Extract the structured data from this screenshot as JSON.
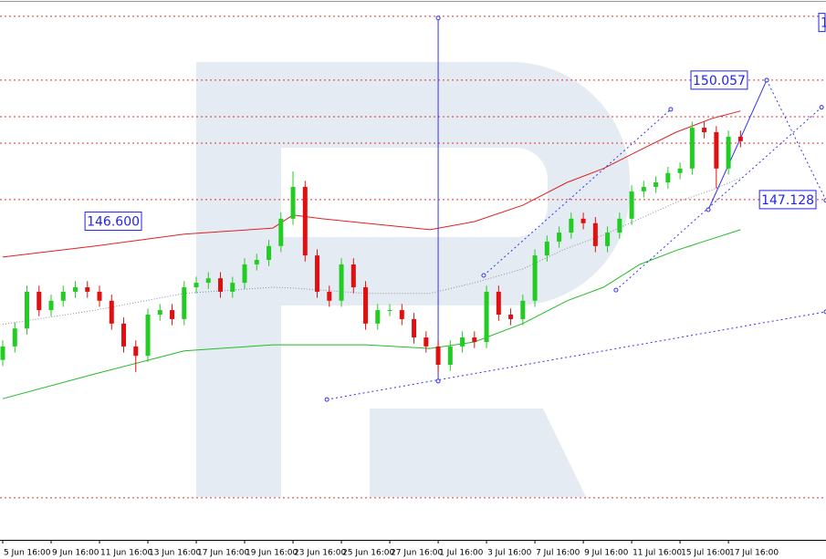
{
  "chart_data": {
    "type": "candlestick",
    "xlim": [
      -0.68,
      204.2
    ],
    "ylim": [
      138.79,
      152.02
    ],
    "xticks": [
      {
        "value": 0,
        "label": "5 Jun 16:00"
      },
      {
        "value": 12,
        "label": "9 Jun 16:00"
      },
      {
        "value": 24,
        "label": "11 Jun 16:00"
      },
      {
        "value": 36,
        "label": "13 Jun 16:00"
      },
      {
        "value": 48,
        "label": "17 Jun 16:00"
      },
      {
        "value": 60,
        "label": "19 Jun 16:00"
      },
      {
        "value": 72,
        "label": "23 Jun 16:00"
      },
      {
        "value": 84,
        "label": "25 Jun 16:00"
      },
      {
        "value": 96,
        "label": "27 Jun 16:00"
      },
      {
        "value": 108,
        "label": "1 Jul 16:00"
      },
      {
        "value": 120,
        "label": "3 Jul 16:00"
      },
      {
        "value": 132,
        "label": "7 Jul 16:00"
      },
      {
        "value": 144,
        "label": "9 Jul 16:00"
      },
      {
        "value": 156,
        "label": "11 Jul 16:00"
      },
      {
        "value": 168,
        "label": "15 Jul 16:00"
      },
      {
        "value": 180,
        "label": "17 Jul 16:00"
      }
    ],
    "x": [
      0,
      3,
      6,
      9,
      12,
      15,
      18,
      21,
      24,
      27,
      30,
      33,
      36,
      39,
      42,
      45,
      48,
      51,
      54,
      57,
      60,
      63,
      66,
      69,
      72,
      75,
      78,
      81,
      84,
      87,
      90,
      93,
      96,
      99,
      102,
      105,
      108,
      111,
      114,
      117,
      120,
      123,
      126,
      129,
      132,
      135,
      138,
      141,
      144,
      147,
      150,
      153,
      156,
      159,
      162,
      165,
      168,
      171,
      174,
      177,
      180,
      183
    ],
    "open": [
      143.2,
      143.53,
      143.97,
      144.87,
      144.42,
      144.65,
      144.87,
      144.98,
      144.87,
      144.65,
      144.09,
      143.53,
      143.3,
      144.31,
      144.42,
      144.2,
      144.98,
      145.09,
      145.2,
      144.87,
      145.09,
      145.54,
      145.65,
      145.99,
      146.66,
      147.44,
      145.76,
      144.87,
      144.65,
      145.54,
      144.98,
      144.09,
      144.42,
      144.42,
      144.2,
      143.75,
      143.53,
      143.08,
      143.53,
      143.75,
      143.64,
      144.87,
      144.31,
      144.2,
      144.65,
      145.76,
      146.1,
      146.32,
      146.66,
      146.55,
      145.99,
      146.32,
      146.66,
      147.33,
      147.44,
      147.55,
      147.78,
      147.89,
      148.89,
      148.78,
      147.89,
      148.67
    ],
    "high": [
      143.68,
      144.12,
      145.02,
      145.02,
      144.8,
      145.02,
      145.13,
      145.13,
      145.02,
      144.8,
      144.24,
      143.68,
      144.46,
      144.57,
      144.57,
      145.13,
      145.24,
      145.35,
      145.35,
      145.24,
      145.69,
      145.8,
      146.14,
      146.81,
      147.82,
      147.59,
      145.91,
      145.02,
      145.69,
      145.69,
      145.13,
      144.57,
      144.57,
      144.57,
      144.35,
      143.9,
      143.68,
      143.68,
      143.9,
      143.9,
      145.02,
      145.02,
      144.46,
      144.8,
      145.91,
      146.25,
      146.47,
      146.81,
      146.81,
      146.7,
      146.47,
      146.81,
      147.48,
      147.59,
      147.7,
      147.93,
      148.04,
      149.04,
      149.04,
      148.93,
      148.82,
      148.82
    ],
    "low": [
      143.05,
      143.38,
      143.82,
      144.27,
      144.27,
      144.5,
      144.72,
      144.72,
      144.5,
      143.94,
      143.38,
      142.9,
      143.15,
      144.16,
      144.05,
      144.05,
      144.83,
      144.94,
      144.72,
      144.72,
      144.94,
      145.39,
      145.5,
      145.84,
      146.51,
      145.61,
      144.72,
      144.5,
      144.5,
      144.83,
      143.94,
      143.94,
      144.27,
      144.05,
      143.6,
      143.38,
      142.9,
      142.93,
      143.38,
      143.49,
      143.49,
      144.16,
      144.05,
      144.05,
      144.5,
      145.61,
      145.95,
      146.17,
      146.4,
      145.84,
      145.84,
      146.17,
      146.51,
      147.18,
      147.29,
      147.4,
      147.63,
      147.74,
      148.63,
      147.4,
      147.74,
      148.41
    ],
    "close": [
      143.53,
      143.97,
      144.87,
      144.42,
      144.65,
      144.87,
      144.98,
      144.87,
      144.65,
      144.09,
      143.53,
      143.3,
      144.31,
      144.42,
      144.2,
      144.98,
      145.09,
      145.2,
      144.87,
      145.09,
      145.54,
      145.65,
      145.99,
      146.66,
      147.44,
      145.76,
      144.87,
      144.65,
      145.54,
      144.98,
      144.09,
      144.42,
      144.42,
      144.2,
      143.75,
      143.53,
      143.08,
      143.53,
      143.75,
      143.64,
      144.87,
      144.31,
      144.2,
      144.65,
      145.76,
      146.1,
      146.32,
      146.66,
      146.55,
      145.99,
      146.32,
      146.66,
      147.33,
      147.44,
      147.55,
      147.78,
      147.89,
      148.89,
      148.78,
      147.89,
      148.67,
      148.56
    ],
    "up_color": "#22cc22",
    "down_color": "#e01010",
    "series": [
      {
        "color": "#e02020",
        "dashed": false,
        "x": [
          0,
          23,
          45,
          67,
          72,
          79,
          90,
          106,
          117,
          129,
          140,
          149,
          158,
          167,
          176,
          183
        ],
        "values": [
          145.72,
          145.99,
          146.28,
          146.43,
          146.75,
          146.66,
          146.55,
          146.39,
          146.59,
          146.99,
          147.55,
          147.89,
          148.34,
          148.78,
          149.12,
          149.3
        ]
      },
      {
        "color": "#22bb22",
        "dashed": false,
        "x": [
          0,
          23,
          45,
          67,
          72,
          79,
          90,
          106,
          117,
          129,
          140,
          149,
          158,
          167,
          176,
          183
        ],
        "values": [
          142.25,
          142.86,
          143.42,
          143.57,
          143.57,
          143.57,
          143.57,
          143.48,
          143.64,
          144.09,
          144.65,
          144.98,
          145.54,
          145.88,
          146.17,
          146.39
        ]
      },
      {
        "color": "#8890a0",
        "dashed": true,
        "x": [
          0,
          23,
          45,
          67,
          72,
          79,
          90,
          106,
          117,
          129,
          140,
          149,
          158,
          167,
          176,
          183
        ],
        "values": [
          144.07,
          144.42,
          144.83,
          144.98,
          144.96,
          144.91,
          144.83,
          144.83,
          145.09,
          145.43,
          145.94,
          146.26,
          146.66,
          147.06,
          147.37,
          147.66
        ]
      }
    ],
    "levels": [
      151.62,
      150.057,
      149.16,
      148.51,
      147.128,
      139.82
    ],
    "level_color": "#e03030",
    "drawings": [
      {
        "color": "#3333ee",
        "dashed": false,
        "x": [
          108,
          108
        ],
        "y": [
          151.58,
          142.68
        ]
      },
      {
        "color": "#3333ee",
        "dashed": false,
        "x": [
          175,
          189.5
        ],
        "y": [
          146.88,
          150.057
        ]
      },
      {
        "color": "#3333ee",
        "dashed": true,
        "x": [
          189.5,
          204.2
        ],
        "y": [
          150.057,
          147.11
        ]
      },
      {
        "color": "#3333ee",
        "dashed": true,
        "x": [
          119.3,
          165.7
        ],
        "y": [
          145.27,
          149.34
        ]
      },
      {
        "color": "#3333ee",
        "dashed": true,
        "x": [
          152.1,
          203.1
        ],
        "y": [
          144.91,
          149.39
        ]
      },
      {
        "color": "#3333ee",
        "dashed": true,
        "x": [
          80.4,
          204.2
        ],
        "y": [
          142.23,
          144.38
        ]
      }
    ],
    "annotations": [
      {
        "text": "146.600",
        "x": 20.4,
        "y": 146.6
      },
      {
        "text": "150.057",
        "x": 170.7,
        "y": 150.057
      },
      {
        "text": "147.128",
        "x": 187.7,
        "y": 147.128
      },
      {
        "text": "1",
        "x": 202.4,
        "y": 151.47
      }
    ],
    "annotation_color": "#2222ee"
  }
}
